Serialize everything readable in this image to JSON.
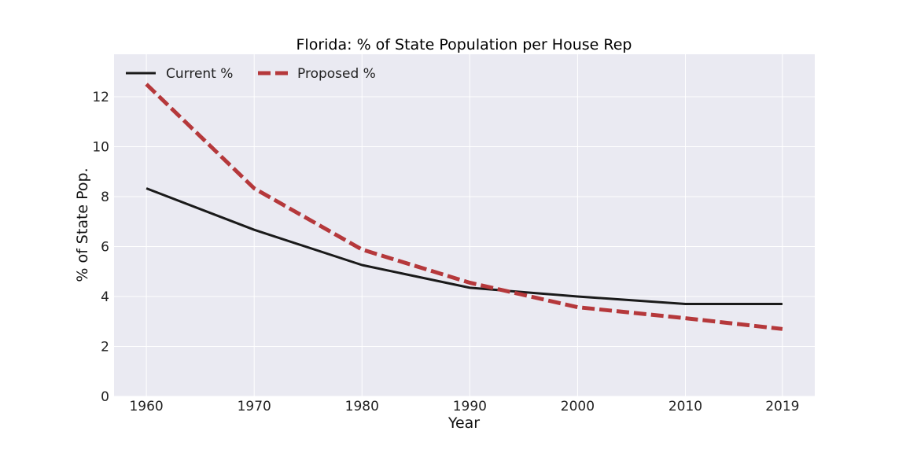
{
  "chart_data": {
    "type": "line",
    "title": "Florida: % of State Population per House Rep",
    "xlabel": "Year",
    "ylabel": "% of State Pop.",
    "x": [
      1960,
      1970,
      1980,
      1990,
      2000,
      2010,
      2019
    ],
    "x_tick_labels": [
      "1960",
      "1970",
      "1980",
      "1990",
      "2000",
      "2010",
      "2019"
    ],
    "y_ticks": [
      0,
      2,
      4,
      6,
      8,
      10,
      12
    ],
    "y_tick_labels": [
      "0",
      "2",
      "4",
      "6",
      "8",
      "10",
      "12"
    ],
    "ylim": [
      0,
      13.7
    ],
    "xlim": [
      1957,
      2022
    ],
    "grid": true,
    "legend_position": "top-left",
    "series": [
      {
        "name": "Current %",
        "style": "solid",
        "color": "#1a1a1a",
        "values": [
          8.33,
          6.67,
          5.26,
          4.35,
          4.0,
          3.7,
          3.7
        ]
      },
      {
        "name": "Proposed %",
        "style": "dashed",
        "color": "#b5383b",
        "values": [
          12.5,
          8.33,
          5.88,
          4.55,
          3.57,
          3.13,
          2.7
        ]
      }
    ],
    "colors": {
      "plot_background": "#eaeaf2",
      "grid": "#ffffff"
    }
  }
}
